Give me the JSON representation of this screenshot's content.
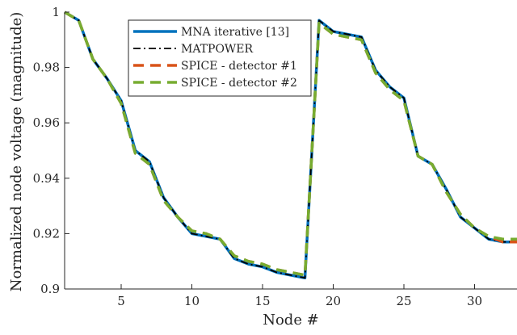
{
  "chart_data": {
    "type": "line",
    "title": "",
    "xlabel": "Node #",
    "ylabel": "Normalized node voltage (magnitude)",
    "xlim": [
      1,
      33
    ],
    "ylim": [
      0.9,
      1.0
    ],
    "xticks": [
      5,
      10,
      15,
      20,
      25,
      30
    ],
    "yticks": [
      0.9,
      0.92,
      0.94,
      0.96,
      0.98,
      1
    ],
    "ytick_labels": [
      "0.9",
      "0.92",
      "0.94",
      "0.96",
      "0.98",
      "1"
    ],
    "grid": false,
    "legend_position": "top-center",
    "x": [
      1,
      2,
      3,
      4,
      5,
      6,
      7,
      8,
      9,
      10,
      11,
      12,
      13,
      14,
      15,
      16,
      17,
      18,
      19,
      20,
      21,
      22,
      23,
      24,
      25,
      26,
      27,
      28,
      29,
      30,
      31,
      32,
      33
    ],
    "series": [
      {
        "name": "MNA iterative [13]",
        "color": "#0072BD",
        "style": "solid",
        "values": [
          1.0,
          0.997,
          0.983,
          0.976,
          0.968,
          0.95,
          0.946,
          0.933,
          0.926,
          0.92,
          0.919,
          0.918,
          0.911,
          0.909,
          0.908,
          0.906,
          0.905,
          0.904,
          0.997,
          0.993,
          0.992,
          0.991,
          0.979,
          0.973,
          0.969,
          0.948,
          0.945,
          0.936,
          0.926,
          0.922,
          0.918,
          0.917,
          0.917
        ]
      },
      {
        "name": "MATPOWER",
        "color": "#000000",
        "style": "dashdot",
        "values": [
          1.0,
          0.997,
          0.983,
          0.976,
          0.968,
          0.95,
          0.946,
          0.933,
          0.926,
          0.92,
          0.919,
          0.918,
          0.911,
          0.909,
          0.908,
          0.906,
          0.905,
          0.904,
          0.997,
          0.993,
          0.992,
          0.991,
          0.979,
          0.973,
          0.969,
          0.948,
          0.945,
          0.936,
          0.926,
          0.922,
          0.918,
          0.917,
          0.917
        ]
      },
      {
        "name": "SPICE - detector #1",
        "color": "#D95319",
        "style": "dashed",
        "values": [
          1.0,
          0.997,
          0.983,
          0.976,
          0.967,
          0.949,
          0.945,
          0.932,
          0.926,
          0.921,
          0.92,
          0.918,
          0.912,
          0.91,
          0.909,
          0.907,
          0.906,
          0.905,
          0.996,
          0.992,
          0.991,
          0.99,
          0.978,
          0.972,
          0.968,
          0.948,
          0.945,
          0.935,
          0.927,
          0.922,
          0.919,
          0.917,
          0.917
        ]
      },
      {
        "name": "SPICE - detector #2",
        "color": "#77AC30",
        "style": "dashed",
        "values": [
          1.0,
          0.997,
          0.983,
          0.976,
          0.967,
          0.949,
          0.945,
          0.932,
          0.926,
          0.921,
          0.92,
          0.918,
          0.912,
          0.91,
          0.909,
          0.907,
          0.906,
          0.905,
          0.996,
          0.992,
          0.991,
          0.99,
          0.978,
          0.972,
          0.968,
          0.948,
          0.945,
          0.935,
          0.927,
          0.922,
          0.919,
          0.918,
          0.918
        ]
      }
    ]
  }
}
